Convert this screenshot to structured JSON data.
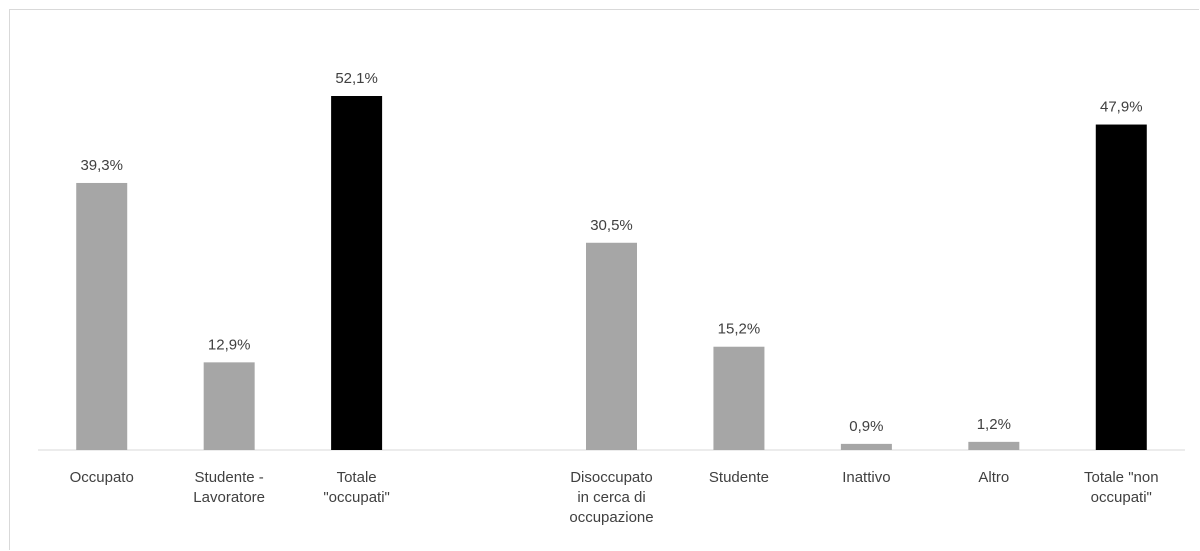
{
  "chart_data": {
    "type": "bar",
    "categories": [
      [
        "Occupato"
      ],
      [
        "Studente -",
        "Lavoratore"
      ],
      [
        "Totale",
        "\"occupati\""
      ],
      [],
      [
        "Disoccupato",
        "in cerca di",
        "occupazione"
      ],
      [
        "Studente"
      ],
      [
        "Inattivo"
      ],
      [
        "Altro"
      ],
      [
        "Totale \"non",
        "occupati\""
      ]
    ],
    "values": [
      39.3,
      12.9,
      52.1,
      null,
      30.5,
      15.2,
      0.9,
      1.2,
      47.9
    ],
    "data_labels": [
      "39,3%",
      "12,9%",
      "52,1%",
      "",
      "30,5%",
      "15,2%",
      "0,9%",
      "1,2%",
      "47,9%"
    ],
    "bar_colors": [
      "#a6a6a6",
      "#a6a6a6",
      "#000000",
      null,
      "#a6a6a6",
      "#a6a6a6",
      "#a6a6a6",
      "#a6a6a6",
      "#000000"
    ],
    "title": "",
    "xlabel": "",
    "ylabel": "",
    "ylim": [
      0,
      55
    ],
    "grid": false,
    "legend": "none",
    "axis_color": "#d9d9d9",
    "label_color": "#404040"
  }
}
